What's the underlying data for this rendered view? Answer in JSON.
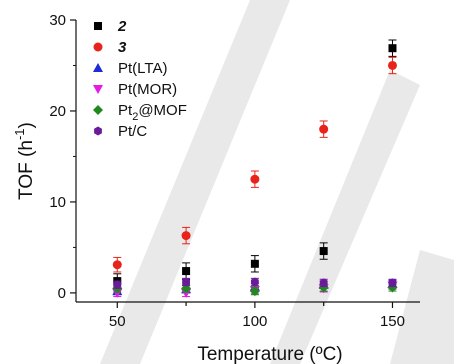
{
  "chart_data": {
    "type": "scatter",
    "title": "",
    "xlabel": "Temperature (ºC)",
    "ylabel_main": "TOF (h",
    "ylabel_sup": "-1",
    "ylabel_close": ")",
    "xlim": [
      35,
      160
    ],
    "ylim": [
      -1,
      30
    ],
    "x_ticks": [
      50,
      75,
      100,
      125,
      150
    ],
    "x_tick_labels": [
      "50",
      "",
      "100",
      "",
      "150"
    ],
    "y_ticks": [
      0,
      10,
      20,
      30
    ],
    "y_tick_labels": [
      "0",
      "10",
      "20",
      "30"
    ],
    "grid": false,
    "legend_position": "top-left",
    "series": [
      {
        "name": "2",
        "name_style": "bold-italic",
        "marker": "square",
        "color": "#000000",
        "x": [
          50,
          75,
          100,
          125,
          150
        ],
        "y": [
          1.3,
          2.4,
          3.2,
          4.6,
          26.9
        ],
        "err": [
          0.8,
          0.9,
          0.9,
          0.9,
          0.9
        ]
      },
      {
        "name": "3",
        "name_style": "bold-italic",
        "marker": "circle",
        "color": "#e8231b",
        "x": [
          50,
          75,
          100,
          125,
          150
        ],
        "y": [
          3.1,
          6.3,
          12.5,
          18.0,
          25.0
        ],
        "err": [
          0.8,
          0.9,
          0.9,
          0.9,
          0.9
        ]
      },
      {
        "name": "Pt(LTA)",
        "marker": "triangle-up",
        "color": "#1f2bd6",
        "x": [
          50,
          75,
          100,
          125,
          150
        ],
        "y": [
          0.2,
          0.4,
          0.7,
          0.9,
          1.0
        ],
        "err": [
          0.4,
          0.4,
          0.4,
          0.4,
          0.4
        ]
      },
      {
        "name": "Pt(MOR)",
        "marker": "triangle-down",
        "color": "#e619e6",
        "x": [
          50,
          75,
          100,
          125,
          150
        ],
        "y": [
          0.0,
          0.0,
          0.3,
          0.5,
          0.8
        ],
        "err": [
          0.4,
          0.4,
          0.4,
          0.4,
          0.4
        ]
      },
      {
        "name": "Pt",
        "name_sub": "2",
        "name_rest": "@MOF",
        "marker": "diamond",
        "color": "#1e8a1e",
        "x": [
          50,
          75,
          100,
          125,
          150
        ],
        "y": [
          0.5,
          0.5,
          0.2,
          0.6,
          0.6
        ],
        "err": [
          0.4,
          0.4,
          0.4,
          0.4,
          0.4
        ]
      },
      {
        "name": "Pt/C",
        "marker": "hexagon",
        "color": "#6a1b9a",
        "x": [
          50,
          75,
          100,
          125,
          150
        ],
        "y": [
          0.9,
          1.2,
          1.2,
          1.1,
          1.1
        ],
        "err": [
          0.4,
          0.4,
          0.4,
          0.4,
          0.4
        ]
      }
    ]
  }
}
